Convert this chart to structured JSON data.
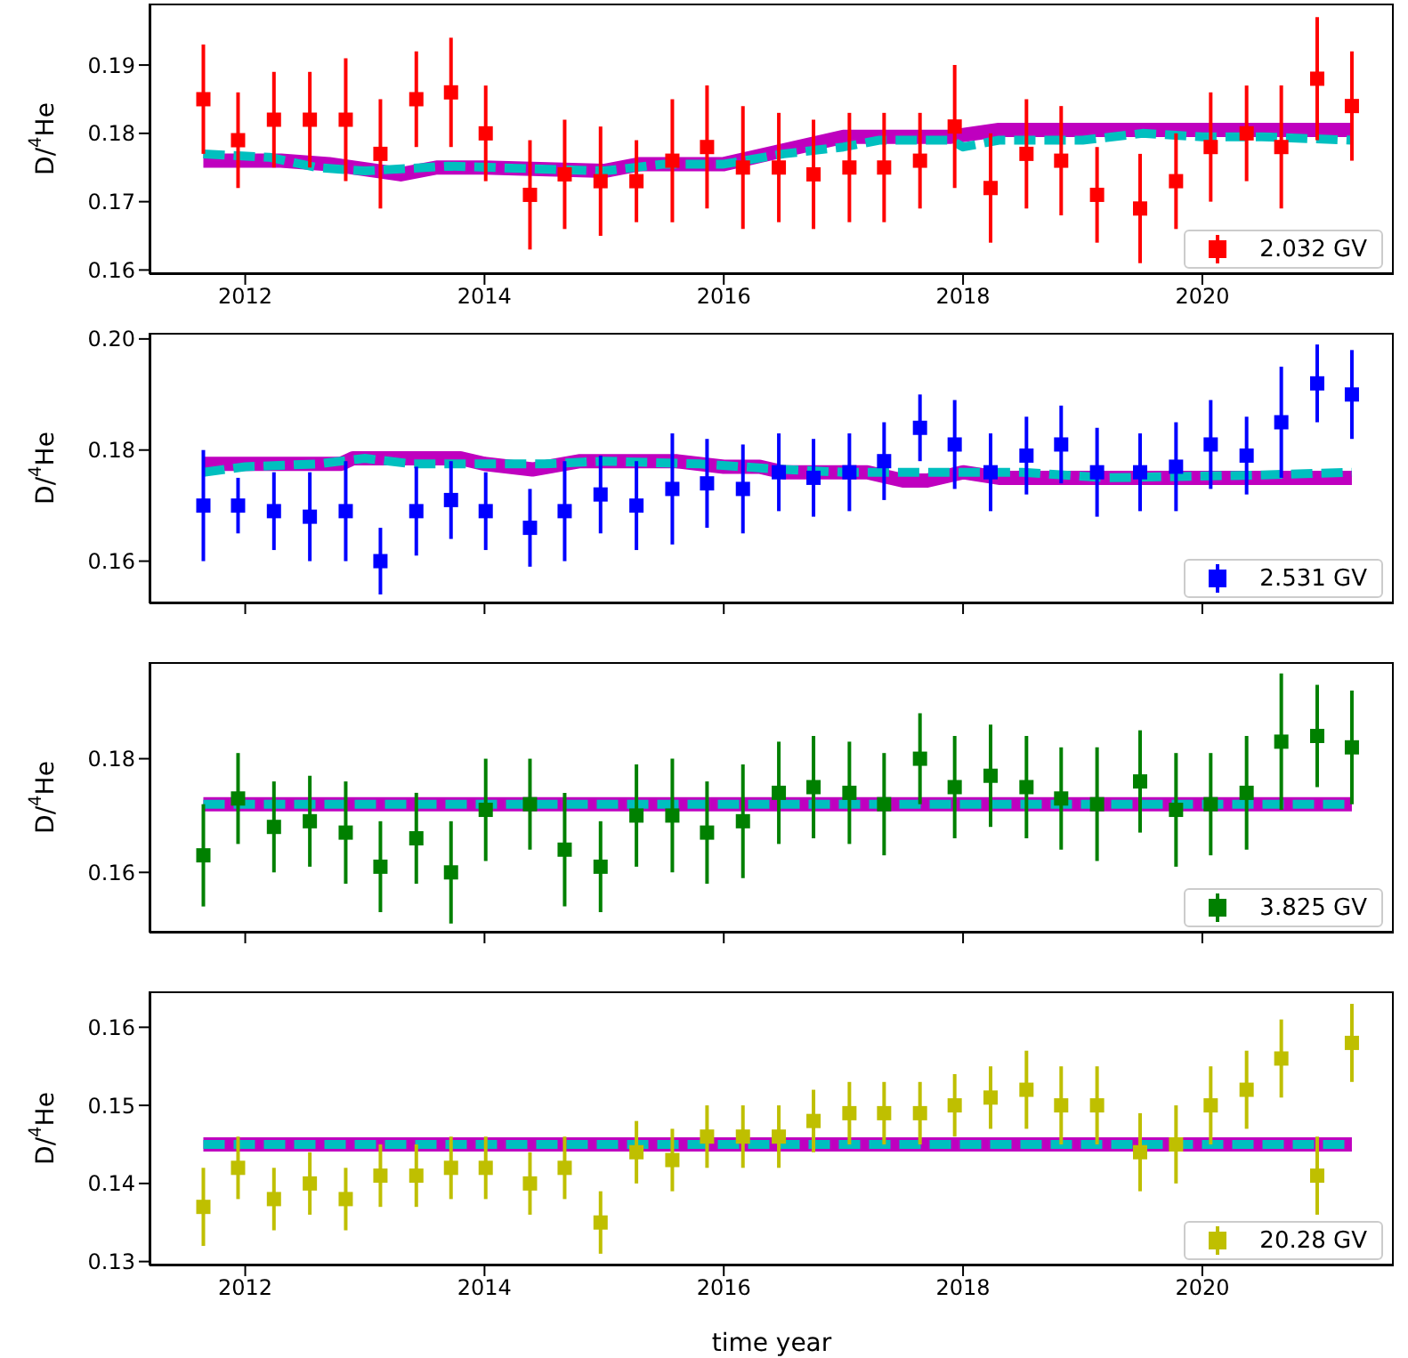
{
  "chart_data": [
    {
      "type": "scatter",
      "ylabel": "D/$^{4}$He",
      "x": [
        2011.65,
        2011.94,
        2012.24,
        2012.54,
        2012.84,
        2013.13,
        2013.43,
        2013.72,
        2014.01,
        2014.38,
        2014.67,
        2014.97,
        2015.27,
        2015.57,
        2015.86,
        2016.16,
        2016.46,
        2016.75,
        2017.05,
        2017.34,
        2017.64,
        2017.93,
        2018.23,
        2018.53,
        2018.82,
        2019.12,
        2019.48,
        2019.78,
        2020.07,
        2020.37,
        2020.66,
        2020.96,
        2021.25
      ],
      "xlim": [
        2011.2,
        2021.6
      ],
      "xticks": [
        2012,
        2014,
        2016,
        2018,
        2020
      ],
      "ylim": [
        0.1594,
        0.199
      ],
      "yticks": [
        0.16,
        0.17,
        0.18,
        0.19
      ],
      "legend": "bottom right",
      "marker": "square",
      "series": [
        {
          "type": "line",
          "color": "#bf00bf",
          "line_style": "solid",
          "marker": "none",
          "x": [
            2011.65,
            2012.3,
            2012.7,
            2013.3,
            2013.6,
            2014.0,
            2015.0,
            2015.3,
            2016.0,
            2016.5,
            2017.0,
            2017.9,
            2018.3,
            2021.25
          ],
          "values": [
            0.176,
            0.176,
            0.1755,
            0.174,
            0.175,
            0.175,
            0.1745,
            0.1755,
            0.1755,
            0.1775,
            0.1795,
            0.1795,
            0.1805,
            0.1805
          ]
        },
        {
          "type": "line",
          "color": "#00bfbf",
          "line_style": "dashed",
          "marker": "none",
          "x": [
            2011.65,
            2012.2,
            2012.6,
            2013.0,
            2013.5,
            2013.7,
            2015.0,
            2015.5,
            2016.0,
            2016.5,
            2017.0,
            2017.3,
            2017.9,
            2018.0,
            2018.3,
            2019.0,
            2019.5,
            2020.0,
            2020.5,
            2021.25
          ],
          "values": [
            0.177,
            0.1765,
            0.175,
            0.1745,
            0.175,
            0.1752,
            0.1745,
            0.1755,
            0.1755,
            0.177,
            0.178,
            0.179,
            0.179,
            0.178,
            0.179,
            0.179,
            0.18,
            0.1795,
            0.1795,
            0.179
          ]
        },
        {
          "name": "2.032 GV",
          "color": "#ff0000",
          "values": [
            0.185,
            0.179,
            0.182,
            0.182,
            0.182,
            0.177,
            0.185,
            0.186,
            0.18,
            0.171,
            0.174,
            0.173,
            0.173,
            0.176,
            0.178,
            0.175,
            0.175,
            0.174,
            0.175,
            0.175,
            0.176,
            0.181,
            0.172,
            0.177,
            0.176,
            0.171,
            0.169,
            0.173,
            0.178,
            0.18,
            0.178,
            0.188,
            0.184
          ],
          "errors": [
            0.008,
            0.007,
            0.007,
            0.007,
            0.009,
            0.008,
            0.007,
            0.008,
            0.007,
            0.008,
            0.008,
            0.008,
            0.006,
            0.009,
            0.009,
            0.009,
            0.008,
            0.008,
            0.008,
            0.008,
            0.007,
            0.009,
            0.008,
            0.008,
            0.008,
            0.007,
            0.008,
            0.007,
            0.008,
            0.007,
            0.009,
            0.009,
            0.008
          ]
        }
      ]
    },
    {
      "type": "scatter",
      "ylabel": "D/$^{4}$He",
      "x": [
        2011.65,
        2011.94,
        2012.24,
        2012.54,
        2012.84,
        2013.13,
        2013.43,
        2013.72,
        2014.01,
        2014.38,
        2014.67,
        2014.97,
        2015.27,
        2015.57,
        2015.86,
        2016.16,
        2016.46,
        2016.75,
        2017.05,
        2017.34,
        2017.64,
        2017.93,
        2018.23,
        2018.53,
        2018.82,
        2019.12,
        2019.48,
        2019.78,
        2020.07,
        2020.37,
        2020.66,
        2020.96,
        2021.25
      ],
      "xlim": [
        2011.2,
        2021.6
      ],
      "xticks": [
        2012,
        2014,
        2016,
        2018,
        2020
      ],
      "ylim": [
        0.1524,
        0.2011
      ],
      "yticks": [
        0.16,
        0.18,
        {
          "value": 0.2,
          "label": "0.20"
        }
      ],
      "tick_labels": "y",
      "legend": "bottom right",
      "marker": "square",
      "series": [
        {
          "type": "line",
          "color": "#bf00bf",
          "line_style": "solid",
          "marker": "none",
          "x": [
            2011.65,
            2012.8,
            2012.9,
            2013.8,
            2014.0,
            2014.4,
            2014.8,
            2015.6,
            2016.0,
            2016.3,
            2016.5,
            2017.2,
            2017.5,
            2017.7,
            2018.0,
            2018.3,
            2021.25
          ],
          "values": [
            0.1775,
            0.1775,
            0.1785,
            0.1785,
            0.1775,
            0.1765,
            0.178,
            0.178,
            0.177,
            0.177,
            0.176,
            0.176,
            0.1745,
            0.1745,
            0.176,
            0.175,
            0.175
          ]
        },
        {
          "type": "line",
          "color": "#00bfbf",
          "line_style": "dashed",
          "marker": "none",
          "x": [
            2011.65,
            2012.0,
            2012.6,
            2013.0,
            2013.4,
            2014.0,
            2014.5,
            2015.0,
            2015.8,
            2016.5,
            2017.0,
            2017.8,
            2018.5,
            2019.2,
            2020.5,
            2021.25
          ],
          "values": [
            0.176,
            0.177,
            0.1775,
            0.1785,
            0.1775,
            0.1775,
            0.1775,
            0.178,
            0.1775,
            0.1765,
            0.176,
            0.176,
            0.176,
            0.175,
            0.1755,
            0.176
          ]
        },
        {
          "name": "2.531 GV",
          "color": "#0000ff",
          "values": [
            0.17,
            0.17,
            0.169,
            0.168,
            0.169,
            0.16,
            0.169,
            0.171,
            0.169,
            0.166,
            0.169,
            0.172,
            0.17,
            0.173,
            0.174,
            0.173,
            0.176,
            0.175,
            0.176,
            0.178,
            0.184,
            0.181,
            0.176,
            0.179,
            0.181,
            0.176,
            0.176,
            0.177,
            0.181,
            0.179,
            0.185,
            0.192,
            0.19
          ],
          "errors": [
            0.01,
            0.005,
            0.007,
            0.008,
            0.009,
            0.006,
            0.008,
            0.007,
            0.007,
            0.007,
            0.009,
            0.007,
            0.008,
            0.01,
            0.008,
            0.008,
            0.007,
            0.007,
            0.007,
            0.007,
            0.006,
            0.008,
            0.007,
            0.007,
            0.007,
            0.008,
            0.007,
            0.008,
            0.008,
            0.007,
            0.01,
            0.007,
            0.008
          ]
        }
      ]
    },
    {
      "type": "scatter",
      "ylabel": "D/$^{4}$He",
      "x": [
        2011.65,
        2011.94,
        2012.24,
        2012.54,
        2012.84,
        2013.13,
        2013.43,
        2013.72,
        2014.01,
        2014.38,
        2014.67,
        2014.97,
        2015.27,
        2015.57,
        2015.86,
        2016.16,
        2016.46,
        2016.75,
        2017.05,
        2017.34,
        2017.64,
        2017.93,
        2018.23,
        2018.53,
        2018.82,
        2019.12,
        2019.48,
        2019.78,
        2020.07,
        2020.37,
        2020.66,
        2020.96,
        2021.25
      ],
      "xlim": [
        2011.2,
        2021.6
      ],
      "xticks": [
        2012,
        2014,
        2016,
        2018,
        2020
      ],
      "ylim": [
        0.1494,
        0.197
      ],
      "yticks": [
        0.16,
        0.18
      ],
      "tick_labels": "y",
      "legend": "bottom right",
      "marker": "square",
      "series": [
        {
          "type": "line",
          "color": "#bf00bf",
          "line_style": "solid",
          "marker": "none",
          "x": [
            2011.65,
            2021.25
          ],
          "values": [
            0.172,
            0.172
          ]
        },
        {
          "type": "line",
          "color": "#00bfbf",
          "line_style": "dashed",
          "marker": "none",
          "x": [
            2011.65,
            2021.25
          ],
          "values": [
            0.172,
            0.172
          ]
        },
        {
          "name": "3.825 GV",
          "color": "#008000",
          "values": [
            0.163,
            0.173,
            0.168,
            0.169,
            0.167,
            0.161,
            0.166,
            0.16,
            0.171,
            0.172,
            0.164,
            0.161,
            0.17,
            0.17,
            0.167,
            0.169,
            0.174,
            0.175,
            0.174,
            0.172,
            0.18,
            0.175,
            0.177,
            0.175,
            0.173,
            0.172,
            0.176,
            0.171,
            0.172,
            0.174,
            0.183,
            0.184,
            0.182
          ],
          "errors": [
            0.009,
            0.008,
            0.008,
            0.008,
            0.009,
            0.008,
            0.008,
            0.009,
            0.009,
            0.008,
            0.01,
            0.008,
            0.009,
            0.01,
            0.009,
            0.01,
            0.009,
            0.009,
            0.009,
            0.009,
            0.008,
            0.009,
            0.009,
            0.009,
            0.009,
            0.01,
            0.009,
            0.01,
            0.009,
            0.01,
            0.012,
            0.009,
            0.01
          ]
        }
      ]
    },
    {
      "type": "scatter",
      "ylabel": "D/$^{4}$He",
      "xlabel": "time year",
      "x": [
        2011.65,
        2011.94,
        2012.24,
        2012.54,
        2012.84,
        2013.13,
        2013.43,
        2013.72,
        2014.01,
        2014.38,
        2014.67,
        2014.97,
        2015.27,
        2015.57,
        2015.86,
        2016.16,
        2016.46,
        2016.75,
        2017.05,
        2017.34,
        2017.64,
        2017.93,
        2018.23,
        2018.53,
        2018.82,
        2019.12,
        2019.48,
        2019.78,
        2020.07,
        2020.37,
        2020.66,
        2020.96,
        2021.25
      ],
      "xlim": [
        2011.2,
        2021.6
      ],
      "xticks": [
        2012,
        2014,
        2016,
        2018,
        2020
      ],
      "ylim": [
        0.1295,
        0.1646
      ],
      "yticks": [
        0.13,
        0.14,
        0.15,
        0.16
      ],
      "legend": "bottom right",
      "marker": "square",
      "series": [
        {
          "type": "line",
          "color": "#bf00bf",
          "line_style": "solid",
          "marker": "none",
          "x": [
            2011.65,
            2021.25
          ],
          "values": [
            0.145,
            0.145
          ]
        },
        {
          "type": "line",
          "color": "#00bfbf",
          "line_style": "dashed",
          "marker": "none",
          "x": [
            2011.65,
            2021.25
          ],
          "values": [
            0.145,
            0.145
          ]
        },
        {
          "name": "20.28 GV",
          "color": "#bfbf00",
          "values": [
            0.137,
            0.142,
            0.138,
            0.14,
            0.138,
            0.141,
            0.141,
            0.142,
            0.142,
            0.14,
            0.142,
            0.135,
            0.144,
            0.143,
            0.146,
            0.146,
            0.146,
            0.148,
            0.149,
            0.149,
            0.149,
            0.15,
            0.151,
            0.152,
            0.15,
            0.15,
            0.144,
            0.145,
            0.15,
            0.152,
            0.156,
            0.141,
            0.158
          ],
          "errors": [
            0.005,
            0.004,
            0.004,
            0.004,
            0.004,
            0.004,
            0.004,
            0.004,
            0.004,
            0.004,
            0.004,
            0.004,
            0.004,
            0.004,
            0.004,
            0.004,
            0.004,
            0.004,
            0.004,
            0.004,
            0.004,
            0.004,
            0.004,
            0.005,
            0.005,
            0.005,
            0.005,
            0.005,
            0.005,
            0.005,
            0.005,
            0.005,
            0.005
          ]
        }
      ]
    }
  ]
}
